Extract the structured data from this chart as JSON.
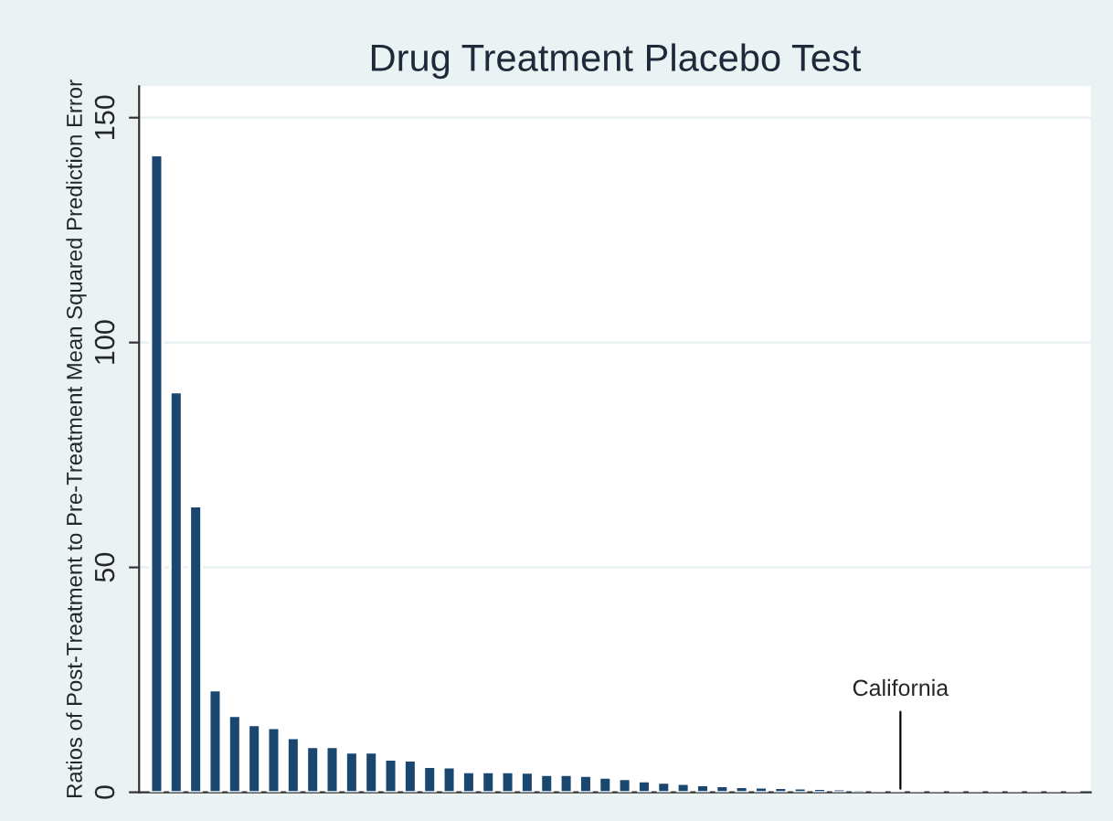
{
  "chart_data": {
    "type": "bar",
    "title": "Drug Treatment Placebo Test",
    "ylabel": "Ratios of Post-Treatment to Pre-Treatment Mean Squared Prediction Error",
    "categories": [
      null,
      null,
      null,
      null,
      null,
      null,
      null,
      null,
      null,
      null,
      null,
      null,
      null,
      null,
      null,
      null,
      null,
      null,
      null,
      null,
      null,
      null,
      null,
      null,
      null,
      null,
      null,
      null,
      null,
      null,
      null,
      null,
      null,
      null,
      null,
      null,
      null,
      null,
      null,
      null,
      null,
      null,
      null,
      null,
      null,
      null,
      null,
      null
    ],
    "values": [
      141.7,
      89,
      63.6,
      22.7,
      17,
      15,
      14.3,
      12.1,
      10.1,
      10.1,
      8.9,
      8.9,
      7.3,
      7.1,
      5.7,
      5.6,
      4.5,
      4.5,
      4.5,
      4.4,
      3.9,
      3.9,
      3.7,
      3.3,
      3.0,
      2.5,
      2.2,
      1.9,
      1.6,
      1.4,
      1.2,
      1.1,
      1.0,
      0.9,
      0.8,
      0.7,
      0.6,
      0.5,
      0.5,
      0.4,
      0.4,
      0.4,
      0.3,
      0.3,
      0.3,
      0.2,
      0.2,
      0.2
    ],
    "color": "#1a476f",
    "ylim": [
      0,
      157
    ],
    "yticks": [
      0,
      50,
      100,
      150
    ],
    "grid": "y",
    "annotations": [
      "California"
    ]
  }
}
